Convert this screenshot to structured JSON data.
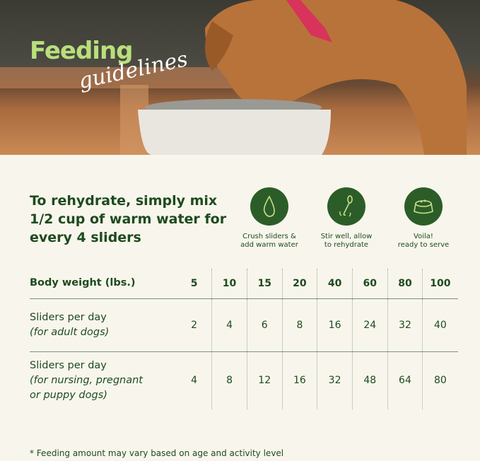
{
  "hero": {
    "title_main": "Feeding",
    "title_script": "guidelines"
  },
  "headline": "To rehydrate, simply mix 1/2 cup of warm water for every 4 sliders",
  "steps": [
    {
      "icon": "water-drop-icon",
      "line1": "Crush sliders &",
      "line2": "add warm water"
    },
    {
      "icon": "spoon-stir-icon",
      "line1": "Stir well, allow",
      "line2": "to rehydrate"
    },
    {
      "icon": "food-bowl-icon",
      "line1": "Voila!",
      "line2": "ready to serve"
    }
  ],
  "colors": {
    "accent_green": "#2c5d28",
    "text_green": "#1e4a1f",
    "title_lime": "#b9e07a",
    "background": "#f8f6ec"
  },
  "table": {
    "header": "Body weight (lbs.)",
    "weights": [
      "5",
      "10",
      "15",
      "20",
      "40",
      "60",
      "80",
      "100"
    ],
    "rows": [
      {
        "label": "Sliders per day",
        "sub1": "(for adult dogs)",
        "sub2": "",
        "values": [
          "2",
          "4",
          "6",
          "8",
          "16",
          "24",
          "32",
          "40"
        ]
      },
      {
        "label": "Sliders per day",
        "sub1": "(for nursing, pregnant",
        "sub2": "or puppy dogs)",
        "values": [
          "4",
          "8",
          "12",
          "16",
          "32",
          "48",
          "64",
          "80"
        ]
      }
    ]
  },
  "footnote": "* Feeding amount may vary based on age and activity level"
}
